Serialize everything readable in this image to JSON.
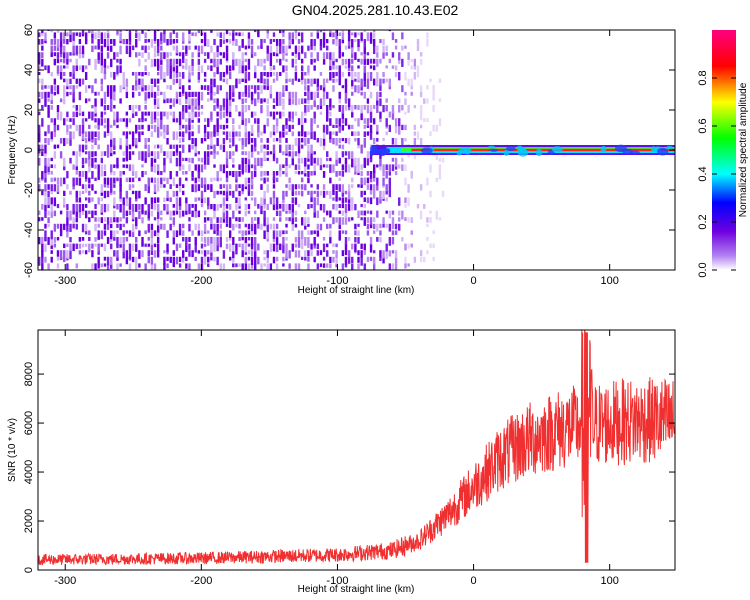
{
  "title": "GN04.2025.281.10.43.E02",
  "chart_data": [
    {
      "type": "heatmap",
      "xlabel": "Height of straight line (km)",
      "ylabel": "Frequency (Hz)",
      "xlim": [
        -320,
        148
      ],
      "ylim": [
        -60,
        60
      ],
      "xticks": [
        -300,
        -200,
        -100,
        0,
        100
      ],
      "yticks": [
        -60,
        -40,
        -20,
        0,
        20,
        40,
        60
      ],
      "noise_region_x": [
        -320,
        -30
      ],
      "signal_band": {
        "frequency": 0,
        "x_start": -75,
        "x_end": 148
      },
      "colorbar": {
        "label": "Normalized spectral amplitude",
        "range": [
          0,
          1
        ],
        "ticks": [
          0.0,
          0.2,
          0.4,
          0.6,
          0.8
        ],
        "colors": [
          "#ffffff",
          "#8a2be2",
          "#0000ff",
          "#00ffff",
          "#00ff00",
          "#ffff00",
          "#ff0000",
          "#ff0080"
        ]
      }
    },
    {
      "type": "line",
      "xlabel": "Height of straight line (km)",
      "ylabel": "SNR (10 * v/v)",
      "xlim": [
        -320,
        148
      ],
      "ylim": [
        0,
        9800
      ],
      "xticks": [
        -300,
        -200,
        -100,
        0,
        100
      ],
      "yticks": [
        0,
        2000,
        4000,
        6000,
        8000
      ],
      "color": "#f03030",
      "trend": [
        [
          -320,
          420
        ],
        [
          -200,
          480
        ],
        [
          -100,
          620
        ],
        [
          -60,
          800
        ],
        [
          -40,
          1200
        ],
        [
          -20,
          2200
        ],
        [
          0,
          3400
        ],
        [
          20,
          4600
        ],
        [
          40,
          5300
        ],
        [
          60,
          5700
        ],
        [
          80,
          5900
        ],
        [
          100,
          6000
        ],
        [
          120,
          6100
        ],
        [
          148,
          6100
        ]
      ],
      "spike": {
        "x": 83,
        "max": 9700,
        "min": 300
      }
    }
  ]
}
